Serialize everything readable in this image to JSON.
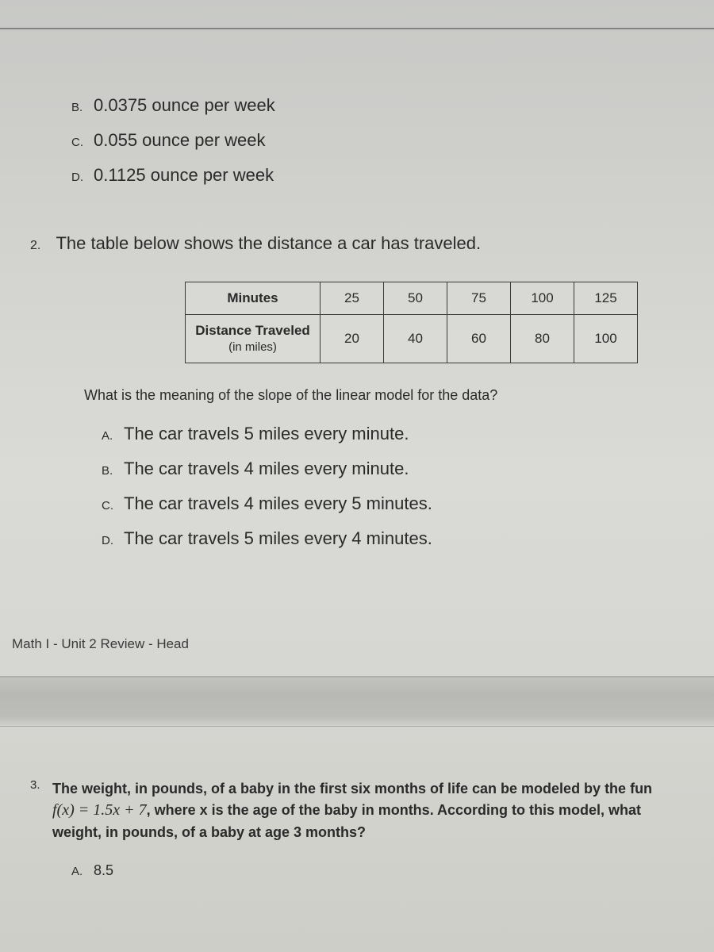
{
  "q1": {
    "choices": [
      {
        "letter": "B.",
        "text": "0.0375 ounce per week"
      },
      {
        "letter": "C.",
        "text": "0.055 ounce per week"
      },
      {
        "letter": "D.",
        "text": "0.1125 ounce per week"
      }
    ]
  },
  "q2": {
    "number": "2.",
    "prompt": "The table below shows the distance a car has traveled.",
    "table": {
      "row1_header": "Minutes",
      "row1_values": [
        "25",
        "50",
        "75",
        "100",
        "125"
      ],
      "row2_header_line1": "Distance Traveled",
      "row2_header_line2": "(in miles)",
      "row2_values": [
        "20",
        "40",
        "60",
        "80",
        "100"
      ]
    },
    "sub_question": "What is the meaning of the slope of the linear model for the data?",
    "choices": [
      {
        "letter": "A.",
        "text": "The car travels 5 miles every minute."
      },
      {
        "letter": "B.",
        "text": "The car travels 4 miles every minute."
      },
      {
        "letter": "C.",
        "text": "The car travels 4 miles every 5 minutes."
      },
      {
        "letter": "D.",
        "text": "The car travels 5 miles every 4 minutes."
      }
    ]
  },
  "footer": "Math I - Unit 2 Review - Head",
  "q3": {
    "number": "3.",
    "text_part1": "The weight, in pounds, of a baby in the first six months of life can be modeled by the fun",
    "formula": "f(x) = 1.5x + 7",
    "text_part2": ", where x is the age of the baby in months. According to this model, what",
    "text_part3": "weight, in pounds, of a baby at age 3 months?",
    "choices": [
      {
        "letter": "A.",
        "text": "8.5"
      }
    ]
  }
}
